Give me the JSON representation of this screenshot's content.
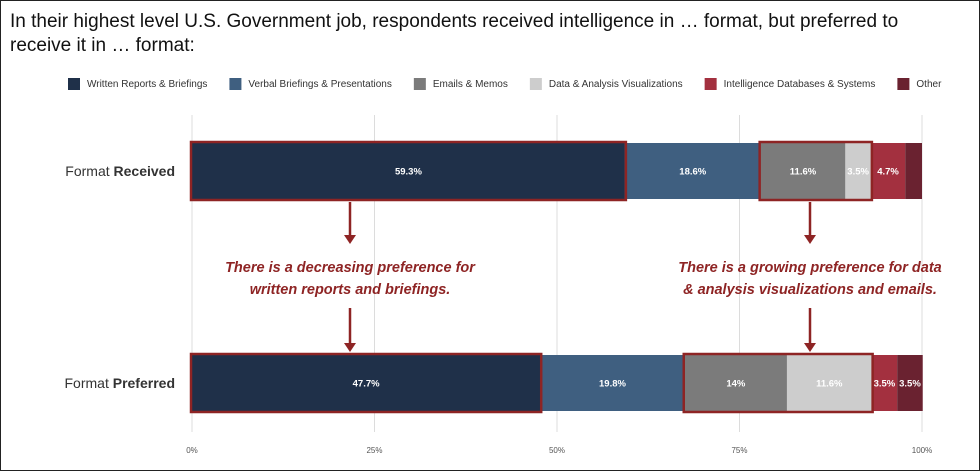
{
  "chart_data": {
    "type": "stacked-bar-horizontal",
    "title": [
      "In their highest level U.S. Government job, respondents received intelligence in … format, but preferred to",
      "receive it in … format:"
    ],
    "categories": [
      "Format Received",
      "Format Preferred"
    ],
    "series": [
      {
        "name": "Written Reports & Briefings",
        "color": "#1f3049",
        "values": [
          59.3,
          47.7
        ],
        "value_labels": [
          "59.3%",
          "47.7%"
        ]
      },
      {
        "name": "Verbal Briefings & Presentations",
        "color": "#3f5f80",
        "values": [
          18.6,
          19.8
        ],
        "value_labels": [
          "18.6%",
          "19.8%"
        ]
      },
      {
        "name": "Emails & Memos",
        "color": "#7b7b7b",
        "values": [
          11.6,
          14
        ],
        "value_labels": [
          "11.6%",
          "14%"
        ]
      },
      {
        "name": "Data & Analysis Visualizations",
        "color": "#cdcdcd",
        "values": [
          3.5,
          11.6
        ],
        "value_labels": [
          "3.5%",
          "11.6%"
        ]
      },
      {
        "name": "Intelligence Databases & Systems",
        "color": "#a3303f",
        "values": [
          4.7,
          3.5
        ],
        "value_labels": [
          "4.7%",
          "3.5%"
        ]
      },
      {
        "name": "Other",
        "color": "#6a2230",
        "values": [
          2.3,
          3.5
        ],
        "value_labels": [
          null,
          "3.5%"
        ]
      }
    ],
    "xlim": [
      0,
      100
    ],
    "xticks": [
      {
        "value": 0,
        "label": "0%"
      },
      {
        "value": 25,
        "label": "25%"
      },
      {
        "value": 50,
        "label": "50%"
      },
      {
        "value": 75,
        "label": "75%"
      },
      {
        "value": 100,
        "label": "100%"
      }
    ],
    "grid": true,
    "annotations": [
      {
        "lines": [
          "There is a decreasing preference for",
          "written reports and briefings."
        ]
      },
      {
        "lines": [
          "There is a growing preference for data",
          "& analysis visualizations and emails."
        ]
      }
    ]
  }
}
